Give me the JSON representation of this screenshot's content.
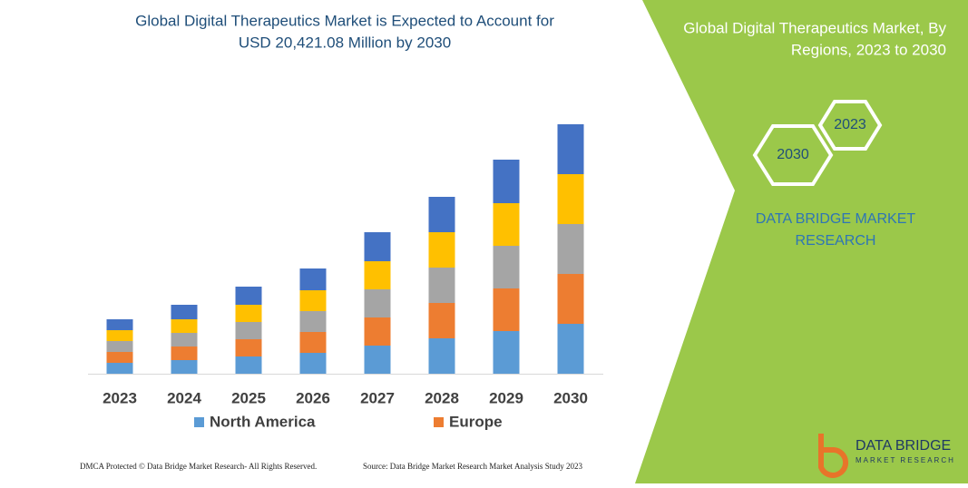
{
  "chart_data": {
    "type": "bar",
    "stacked": true,
    "title_lines": [
      "Global Digital Therapeutics Market is Expected to Account for",
      "USD 20,421.08 Million by 2030"
    ],
    "categories": [
      "2023",
      "2024",
      "2025",
      "2026",
      "2027",
      "2028",
      "2029",
      "2030"
    ],
    "series": [
      {
        "name": "North America",
        "color": "#5b9bd5",
        "values": [
          12,
          15,
          19,
          23,
          31,
          39,
          47,
          55
        ]
      },
      {
        "name": "Europe",
        "color": "#ed7d31",
        "values": [
          12,
          15,
          19,
          23,
          31,
          39,
          47,
          55
        ]
      },
      {
        "color": "#a5a5a5",
        "values": [
          12,
          15,
          19,
          23,
          31,
          39,
          47,
          55
        ]
      },
      {
        "color": "#ffc000",
        "values": [
          12,
          15,
          19,
          23,
          31,
          39,
          47,
          55
        ]
      },
      {
        "color": "#4472c4",
        "values": [
          12,
          16,
          20,
          24,
          32,
          39,
          48,
          55
        ]
      }
    ]
  },
  "panel": {
    "title_lines": [
      "Global Digital Therapeutics Market, By",
      "Regions, 2023 to 2030"
    ],
    "hexagons": [
      "2023",
      "2030"
    ],
    "brand_lines": [
      "DATA BRIDGE MARKET",
      "RESEARCH"
    ],
    "logo": {
      "name": "DATA BRIDGE",
      "tagline": "MARKET RESEARCH"
    }
  },
  "footer": {
    "left": "DMCA Protected © Data Bridge Market Research-  All Rights Reserved.",
    "right": "Source: Data Bridge Market Research  Market Analysis Study 2023"
  }
}
